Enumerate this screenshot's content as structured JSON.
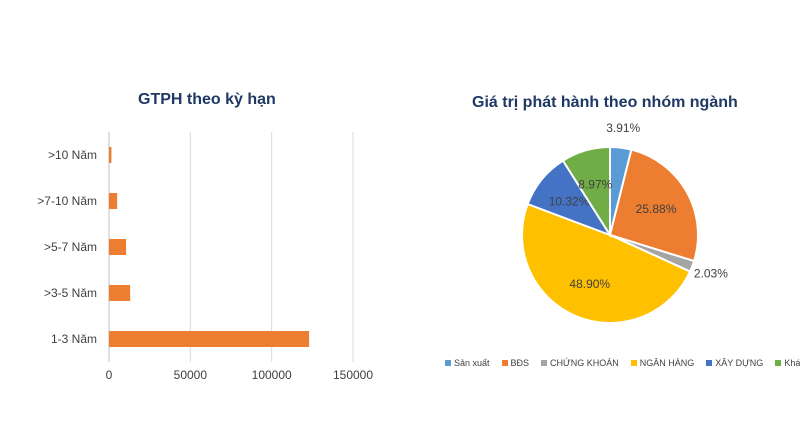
{
  "chart_data": [
    {
      "type": "bar",
      "orientation": "horizontal",
      "title": "GTPH theo kỳ hạn",
      "categories": [
        ">10 Năm",
        ">7-10 Năm",
        ">5-7 Năm",
        ">3-5 Năm",
        "1-3 Năm"
      ],
      "values": [
        1500,
        5000,
        10500,
        13000,
        123000
      ],
      "xlim": [
        0,
        150000
      ],
      "xticks": [
        0,
        50000,
        100000,
        150000
      ],
      "xtick_labels": [
        "0",
        "50000",
        "100000",
        "150000"
      ],
      "grid": "vertical",
      "color": "#ed7d31"
    },
    {
      "type": "pie",
      "title": "Giá trị phát hành theo nhóm ngành",
      "slices": [
        {
          "label": "Sản xuất",
          "value": 3.91,
          "value_label": "3.91%",
          "color": "#5b9bd5"
        },
        {
          "label": "BĐS",
          "value": 25.88,
          "value_label": "25.88%",
          "color": "#ed7d31"
        },
        {
          "label": "CHỨNG KHOÁN",
          "value": 2.03,
          "value_label": "2.03%",
          "color": "#a5a5a5"
        },
        {
          "label": "NGÂN HÀNG",
          "value": 48.9,
          "value_label": "48.90%",
          "color": "#ffc000"
        },
        {
          "label": "XÂY DỰNG",
          "value": 10.32,
          "value_label": "10.32%",
          "color": "#4472c4"
        },
        {
          "label": "Khác",
          "value": 8.97,
          "value_label": "8.97%",
          "color": "#70ad47"
        }
      ],
      "legend_position": "bottom"
    }
  ]
}
